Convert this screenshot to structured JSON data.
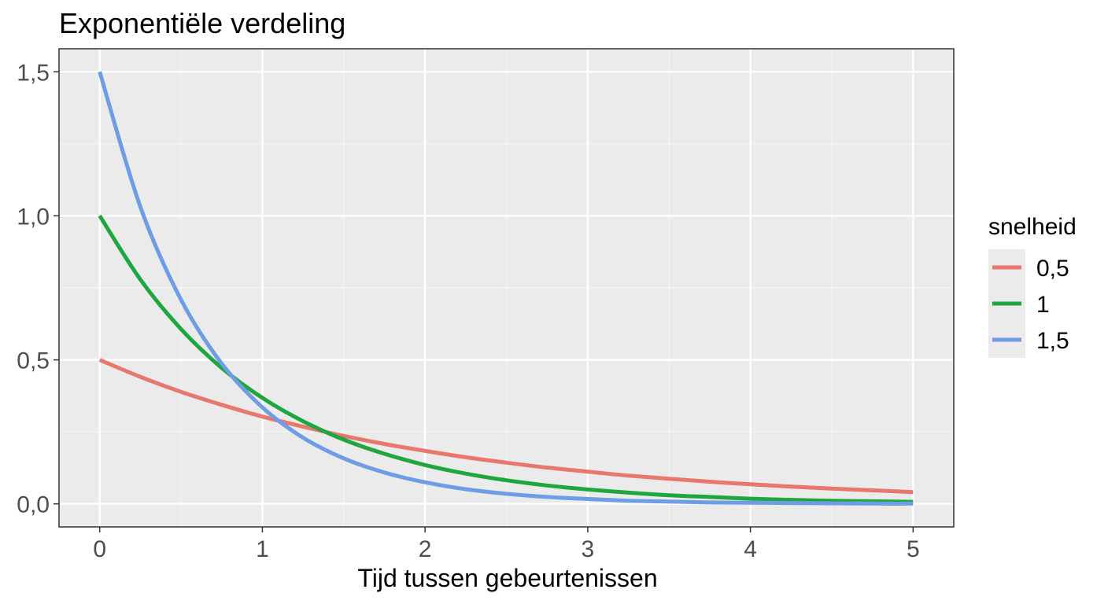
{
  "chart_data": {
    "type": "line",
    "title": "Exponentiële verdeling",
    "xlabel": "Tijd tussen gebeurtenissen",
    "ylabel": "",
    "xlim": [
      -0.25,
      5.25
    ],
    "ylim": [
      -0.08,
      1.58
    ],
    "xticks": [
      0,
      1,
      2,
      3,
      4,
      5
    ],
    "xtick_labels": [
      "0",
      "1",
      "2",
      "3",
      "4",
      "5"
    ],
    "yticks": [
      0,
      0.5,
      1.0,
      1.5
    ],
    "ytick_labels": [
      "0,0",
      "0,5",
      "1,0",
      "1,5"
    ],
    "grid": true,
    "legend_position": "right",
    "legend_title": "snelheid",
    "x": [
      0,
      0.25,
      0.5,
      0.75,
      1,
      1.25,
      1.5,
      1.75,
      2,
      2.25,
      2.5,
      2.75,
      3,
      3.25,
      3.5,
      3.75,
      4,
      4.25,
      4.5,
      4.75,
      5
    ],
    "series": [
      {
        "name": "0,5",
        "color": "#e8776c",
        "values": [
          0.5,
          0.441,
          0.389,
          0.344,
          0.303,
          0.268,
          0.236,
          0.208,
          0.184,
          0.162,
          0.143,
          0.126,
          0.112,
          0.098,
          0.087,
          0.077,
          0.068,
          0.06,
          0.053,
          0.047,
          0.041
        ]
      },
      {
        "name": "1",
        "color": "#1fa63f",
        "values": [
          1.0,
          0.779,
          0.607,
          0.472,
          0.368,
          0.287,
          0.223,
          0.174,
          0.135,
          0.105,
          0.082,
          0.064,
          0.05,
          0.039,
          0.03,
          0.024,
          0.018,
          0.014,
          0.011,
          0.009,
          0.007
        ]
      },
      {
        "name": "1,5",
        "color": "#6e9de6",
        "values": [
          1.5,
          1.031,
          0.709,
          0.487,
          0.335,
          0.23,
          0.158,
          0.109,
          0.075,
          0.051,
          0.035,
          0.024,
          0.017,
          0.011,
          0.008,
          0.005,
          0.004,
          0.003,
          0.002,
          0.001,
          0.001
        ]
      }
    ]
  }
}
